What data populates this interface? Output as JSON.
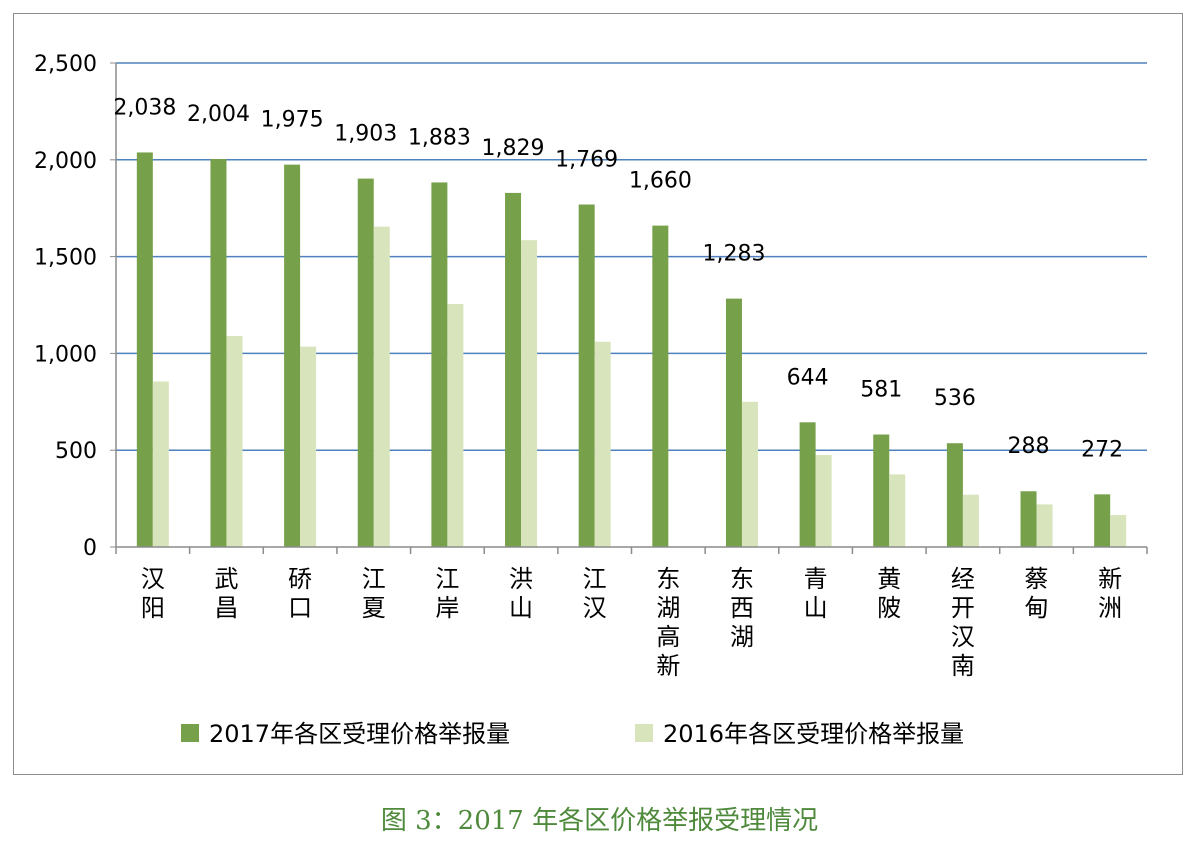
{
  "caption": "图 3：2017 年各区价格举报受理情况",
  "colors": {
    "series_2017": "#77a04a",
    "series_2016": "#d8e4bc",
    "gridline": "#4f81bd",
    "axis": "#8c8c8c"
  },
  "chart_data": {
    "type": "bar",
    "categories": [
      "汉阳",
      "武昌",
      "硚口",
      "江夏",
      "江岸",
      "洪山",
      "江汉",
      "东湖高新",
      "东西湖",
      "青山",
      "黄陂",
      "经开汉南",
      "蔡甸",
      "新洲"
    ],
    "series": [
      {
        "name": "2017年各区受理价格举报量",
        "values": [
          2038,
          2004,
          1975,
          1903,
          1883,
          1829,
          1769,
          1660,
          1283,
          644,
          581,
          536,
          288,
          272
        ],
        "labels": [
          "2,038",
          "2,004",
          "1,975",
          "1,903",
          "1,883",
          "1,829",
          "1,769",
          "1,660",
          "1,283",
          "644",
          "581",
          "536",
          "288",
          "272"
        ]
      },
      {
        "name": "2016年各区受理价格举报量",
        "values": [
          855,
          1090,
          1035,
          1655,
          1255,
          1585,
          1060,
          0,
          750,
          475,
          375,
          270,
          220,
          165
        ]
      }
    ],
    "ylim": [
      0,
      2500
    ],
    "yticks": [
      0,
      500,
      1000,
      1500,
      2000,
      2500
    ],
    "ytick_labels": [
      "0",
      "500",
      "1,000",
      "1,500",
      "2,000",
      "2,500"
    ],
    "grid": true,
    "legend_position": "bottom"
  }
}
